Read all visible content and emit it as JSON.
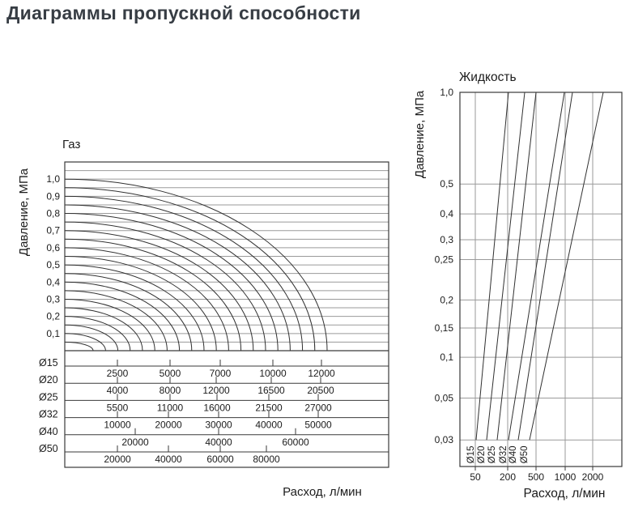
{
  "page": {
    "title": "Диаграммы пропускной способности"
  },
  "colors": {
    "background": "#ffffff",
    "title_text": "#373d44",
    "axis_text": "#1c1c1c",
    "frame_line": "#3a3a3a",
    "grid_line": "#9a9a9a",
    "curve_line": "#303030"
  },
  "chart_data": [
    {
      "id": "gas",
      "type": "line",
      "title": "Газ",
      "xlabel": "Расход, л/мин",
      "ylabel": "Давление, МПа",
      "ylim": [
        0,
        1.1
      ],
      "grid": true,
      "grid_step_mpa": 0.05,
      "yticks": [
        {
          "label": "1,0",
          "value": 1.0
        },
        {
          "label": "0,9",
          "value": 0.9
        },
        {
          "label": "0,8",
          "value": 0.8
        },
        {
          "label": "0,7",
          "value": 0.7
        },
        {
          "label": "0,6",
          "value": 0.6
        },
        {
          "label": "0,5",
          "value": 0.5
        },
        {
          "label": "0,4",
          "value": 0.4
        },
        {
          "label": "0,3",
          "value": 0.3
        },
        {
          "label": "0,2",
          "value": 0.2
        },
        {
          "label": "0,1",
          "value": 0.1
        }
      ],
      "curves_note": "Family of isobar capacity curves, one per inlet pressure level; each starts horizontal at the pressure axis and bends down to vertical at its maximum flow position (quarter-ellipse shape).",
      "curve_levels_mpa": [
        1.0,
        0.95,
        0.9,
        0.85,
        0.8,
        0.75,
        0.7,
        0.65,
        0.6,
        0.55,
        0.5,
        0.45,
        0.4,
        0.35,
        0.3,
        0.25,
        0.2,
        0.15,
        0.1,
        0.05
      ],
      "curve_end_fraction": [
        0.81,
        0.772,
        0.734,
        0.696,
        0.658,
        0.62,
        0.582,
        0.544,
        0.506,
        0.468,
        0.43,
        0.392,
        0.354,
        0.316,
        0.278,
        0.24,
        0.202,
        0.164,
        0.126,
        0.0875
      ],
      "flow_scales": [
        {
          "diameter": "Ø15",
          "ticks": [
            {
              "value": "2500",
              "pos": 0.1625
            },
            {
              "value": "5000",
              "pos": 0.325
            },
            {
              "value": "7000",
              "pos": 0.48
            },
            {
              "value": "10000",
              "pos": 0.6425
            },
            {
              "value": "12000",
              "pos": 0.7925
            }
          ]
        },
        {
          "diameter": "Ø20",
          "ticks": [
            {
              "value": "4000",
              "pos": 0.1625
            },
            {
              "value": "8000",
              "pos": 0.325
            },
            {
              "value": "12000",
              "pos": 0.4675
            },
            {
              "value": "16500",
              "pos": 0.6375
            },
            {
              "value": "20500",
              "pos": 0.79
            }
          ]
        },
        {
          "diameter": "Ø25",
          "ticks": [
            {
              "value": "5500",
              "pos": 0.1625
            },
            {
              "value": "11000",
              "pos": 0.325
            },
            {
              "value": "16000",
              "pos": 0.47
            },
            {
              "value": "21500",
              "pos": 0.63
            },
            {
              "value": "27000",
              "pos": 0.7825
            }
          ]
        },
        {
          "diameter": "Ø32",
          "ticks": [
            {
              "value": "10000",
              "pos": 0.1625
            },
            {
              "value": "20000",
              "pos": 0.32
            },
            {
              "value": "30000",
              "pos": 0.475
            },
            {
              "value": "40000",
              "pos": 0.63
            },
            {
              "value": "50000",
              "pos": 0.7825
            }
          ]
        },
        {
          "diameter": "Ø40",
          "ticks": [
            {
              "value": "20000",
              "pos": 0.2175
            },
            {
              "value": "40000",
              "pos": 0.475
            },
            {
              "value": "60000",
              "pos": 0.7125
            }
          ]
        },
        {
          "diameter": "Ø50",
          "ticks": [
            {
              "value": "20000",
              "pos": 0.1625
            },
            {
              "value": "40000",
              "pos": 0.32
            },
            {
              "value": "60000",
              "pos": 0.48
            },
            {
              "value": "80000",
              "pos": 0.6225
            }
          ]
        }
      ]
    },
    {
      "id": "liquid",
      "type": "line",
      "title": "Жидкость",
      "xlabel": "Расход, л/мин",
      "ylabel": "Давление, МПа",
      "scale_note": "Logarithmic-style axes; straight capacity lines, one per valve diameter.",
      "yticks": [
        {
          "label": "1,0",
          "pos": 0.0
        },
        {
          "label": "0,5",
          "pos": 0.245
        },
        {
          "label": "0,4",
          "pos": 0.325
        },
        {
          "label": "0,3",
          "pos": 0.394
        },
        {
          "label": "0,25",
          "pos": 0.447
        },
        {
          "label": "0,2",
          "pos": 0.555
        },
        {
          "label": "0,15",
          "pos": 0.63
        },
        {
          "label": "0,1",
          "pos": 0.708
        },
        {
          "label": "0,05",
          "pos": 0.817
        },
        {
          "label": "0,03",
          "pos": 0.929
        }
      ],
      "xticks": [
        {
          "label": "50",
          "pos": 0.095
        },
        {
          "label": "200",
          "pos": 0.295
        },
        {
          "label": "500",
          "pos": 0.47
        },
        {
          "label": "1000",
          "pos": 0.65
        },
        {
          "label": "2000",
          "pos": 0.82
        }
      ],
      "series": [
        {
          "name": "Ø15",
          "bottom": 0.1,
          "top": 0.3
        },
        {
          "name": "Ø20",
          "bottom": 0.165,
          "top": 0.4
        },
        {
          "name": "Ø25",
          "bottom": 0.23,
          "top": 0.47
        },
        {
          "name": "Ø32",
          "bottom": 0.3,
          "top": 0.645
        },
        {
          "name": "Ø40",
          "bottom": 0.36,
          "top": 0.695
        },
        {
          "name": "Ø50",
          "bottom": 0.43,
          "top": 0.885
        }
      ]
    }
  ]
}
